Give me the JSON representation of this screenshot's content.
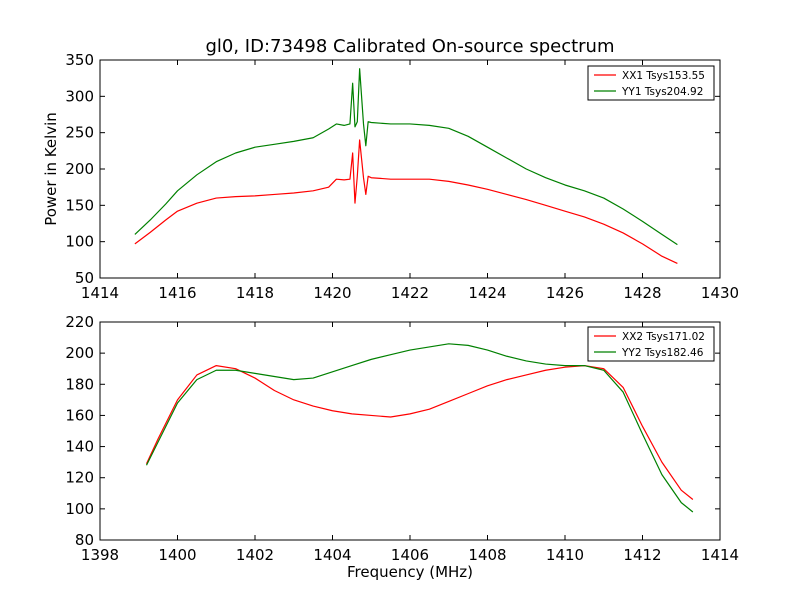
{
  "figure": {
    "title": "gl0, ID:73498 Calibrated On-source spectrum"
  },
  "chart_data": [
    {
      "type": "line",
      "title": "gl0, ID:73498 Calibrated On-source spectrum",
      "xlabel": "",
      "ylabel": "Power in Kelvin",
      "xlim": [
        1414,
        1430
      ],
      "ylim": [
        50,
        350
      ],
      "xticks": [
        "1414",
        "1416",
        "1418",
        "1420",
        "1422",
        "1424",
        "1426",
        "1428",
        "1430"
      ],
      "yticks": [
        "50",
        "100",
        "150",
        "200",
        "250",
        "300",
        "350"
      ],
      "legend_position": "top-right",
      "grid": false,
      "series": [
        {
          "name": "XX1 Tsys153.55",
          "color": "#ff0000",
          "x": [
            1414.9,
            1415.3,
            1415.7,
            1416.0,
            1416.5,
            1417.0,
            1417.5,
            1418.0,
            1418.5,
            1419.0,
            1419.5,
            1419.9,
            1420.1,
            1420.3,
            1420.45,
            1420.52,
            1420.58,
            1420.64,
            1420.7,
            1420.8,
            1420.86,
            1420.92,
            1421.0,
            1421.5,
            1422.0,
            1422.5,
            1423.0,
            1423.5,
            1424.0,
            1424.5,
            1425.0,
            1425.5,
            1426.0,
            1426.5,
            1427.0,
            1427.5,
            1428.0,
            1428.5,
            1428.9
          ],
          "values": [
            97,
            113,
            130,
            142,
            153,
            160,
            162,
            163,
            165,
            167,
            170,
            175,
            186,
            185,
            186,
            222,
            153,
            190,
            240,
            188,
            165,
            190,
            188,
            186,
            186,
            186,
            183,
            178,
            172,
            165,
            158,
            150,
            142,
            134,
            124,
            112,
            97,
            80,
            70
          ]
        },
        {
          "name": "YY1 Tsys204.92",
          "color": "#008000",
          "x": [
            1414.9,
            1415.3,
            1415.7,
            1416.0,
            1416.5,
            1417.0,
            1417.5,
            1418.0,
            1418.5,
            1419.0,
            1419.5,
            1419.9,
            1420.1,
            1420.3,
            1420.45,
            1420.52,
            1420.58,
            1420.64,
            1420.7,
            1420.8,
            1420.86,
            1420.92,
            1421.0,
            1421.5,
            1422.0,
            1422.5,
            1423.0,
            1423.5,
            1424.0,
            1424.5,
            1425.0,
            1425.5,
            1426.0,
            1426.5,
            1427.0,
            1427.5,
            1428.0,
            1428.5,
            1428.9
          ],
          "values": [
            110,
            130,
            152,
            170,
            192,
            210,
            222,
            230,
            234,
            238,
            243,
            255,
            262,
            260,
            262,
            318,
            258,
            265,
            338,
            262,
            232,
            265,
            264,
            262,
            262,
            260,
            256,
            245,
            230,
            215,
            200,
            188,
            178,
            170,
            160,
            145,
            128,
            110,
            96
          ]
        }
      ]
    },
    {
      "type": "line",
      "title": "",
      "xlabel": "Frequency (MHz)",
      "ylabel": "",
      "xlim": [
        1398,
        1414
      ],
      "ylim": [
        80,
        220
      ],
      "xticks": [
        "1398",
        "1400",
        "1402",
        "1404",
        "1406",
        "1408",
        "1410",
        "1412",
        "1414"
      ],
      "yticks": [
        "80",
        "100",
        "120",
        "140",
        "160",
        "180",
        "200",
        "220"
      ],
      "legend_position": "top-right",
      "grid": false,
      "series": [
        {
          "name": "XX2 Tsys171.02",
          "color": "#ff0000",
          "x": [
            1399.2,
            1399.5,
            1400.0,
            1400.5,
            1401.0,
            1401.5,
            1402.0,
            1402.5,
            1403.0,
            1403.5,
            1404.0,
            1404.5,
            1405.0,
            1405.5,
            1406.0,
            1406.5,
            1407.0,
            1407.5,
            1408.0,
            1408.5,
            1409.0,
            1409.5,
            1410.0,
            1410.5,
            1411.0,
            1411.5,
            1412.0,
            1412.5,
            1413.0,
            1413.3
          ],
          "values": [
            129,
            145,
            170,
            186,
            192,
            190,
            184,
            176,
            170,
            166,
            163,
            161,
            160,
            159,
            161,
            164,
            169,
            174,
            179,
            183,
            186,
            189,
            191,
            192,
            190,
            178,
            153,
            130,
            112,
            106
          ]
        },
        {
          "name": "YY2 Tsys182.46",
          "color": "#008000",
          "x": [
            1399.2,
            1399.5,
            1400.0,
            1400.5,
            1401.0,
            1401.5,
            1402.0,
            1402.5,
            1403.0,
            1403.5,
            1404.0,
            1404.5,
            1405.0,
            1405.5,
            1406.0,
            1406.5,
            1407.0,
            1407.5,
            1408.0,
            1408.5,
            1409.0,
            1409.5,
            1410.0,
            1410.5,
            1411.0,
            1411.5,
            1412.0,
            1412.5,
            1413.0,
            1413.3
          ],
          "values": [
            128,
            143,
            168,
            183,
            189,
            189,
            187,
            185,
            183,
            184,
            188,
            192,
            196,
            199,
            202,
            204,
            206,
            205,
            202,
            198,
            195,
            193,
            192,
            192,
            189,
            175,
            148,
            122,
            104,
            98
          ]
        }
      ]
    }
  ]
}
